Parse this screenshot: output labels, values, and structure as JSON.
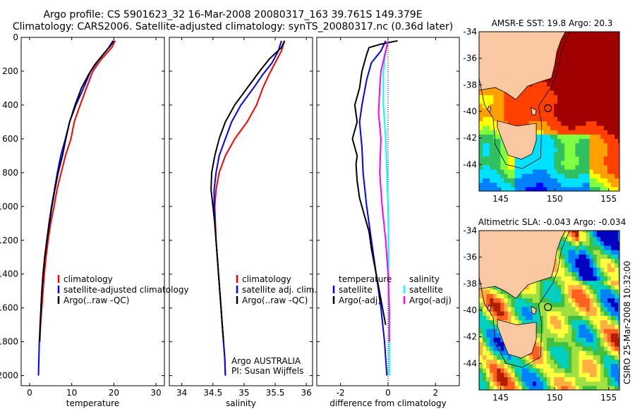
{
  "header": {
    "title_line1": "Argo profile: CS 5901623_32 16-Mar-2008 20080317_163 39.761S 149.379E",
    "title_line2": "Climatology: CARS2006. Satellite-adjusted climatology: synTS_20080317.nc (0.36d later)"
  },
  "colors": {
    "red": "#ff0000",
    "blue": "#0000ff",
    "black": "#000000",
    "cyan": "#00ffff",
    "magenta": "#ff00ff",
    "land": "#f9c8a0"
  },
  "chart_data": [
    {
      "type": "line",
      "xlabel": "temperature",
      "xticks": [
        0,
        10,
        20,
        30
      ],
      "xlim": [
        -2,
        32
      ],
      "yticks": [
        0,
        200,
        400,
        600,
        800,
        1000,
        1200,
        1400,
        1600,
        1800,
        2000
      ],
      "ylim": [
        0,
        2060
      ],
      "y_reversed": true,
      "legend": [
        "climatology",
        "satellite-adjusted climatology",
        "Argo(..raw -QC)"
      ],
      "series": [
        {
          "name": "climatology",
          "color": "red",
          "points": [
            [
              20.3,
              20
            ],
            [
              19.5,
              60
            ],
            [
              17,
              130
            ],
            [
              15,
              200
            ],
            [
              13.5,
              300
            ],
            [
              12,
              400
            ],
            [
              10.6,
              500
            ],
            [
              9.8,
              600
            ],
            [
              8.5,
              700
            ],
            [
              7.5,
              800
            ],
            [
              6.5,
              900
            ],
            [
              5.8,
              1000
            ],
            [
              5,
              1100
            ],
            [
              4.4,
              1200
            ],
            [
              3.9,
              1300
            ],
            [
              3.5,
              1400
            ],
            [
              3.2,
              1500
            ],
            [
              2.9,
              1600
            ],
            [
              2.6,
              1700
            ],
            [
              2.4,
              1800
            ]
          ]
        },
        {
          "name": "satellite-adjusted climatology",
          "color": "blue",
          "points": [
            [
              19.8,
              20
            ],
            [
              18.8,
              60
            ],
            [
              16.5,
              130
            ],
            [
              14.5,
              200
            ],
            [
              12.8,
              300
            ],
            [
              11,
              400
            ],
            [
              9.5,
              500
            ],
            [
              8.5,
              600
            ],
            [
              7.4,
              700
            ],
            [
              6.6,
              800
            ],
            [
              5.9,
              900
            ],
            [
              5.2,
              1000
            ],
            [
              4.6,
              1100
            ],
            [
              4.1,
              1200
            ],
            [
              3.6,
              1300
            ],
            [
              3.2,
              1400
            ],
            [
              2.9,
              1500
            ],
            [
              2.7,
              1600
            ],
            [
              2.5,
              1700
            ],
            [
              2.3,
              1800
            ],
            [
              2.2,
              1900
            ],
            [
              2.1,
              2000
            ]
          ]
        },
        {
          "name": "Argo(..raw -QC)",
          "color": "black",
          "points": [
            [
              20,
              20
            ],
            [
              19.2,
              50
            ],
            [
              17.5,
              100
            ],
            [
              15.5,
              160
            ],
            [
              14,
              220
            ],
            [
              12.3,
              300
            ],
            [
              10.8,
              400
            ],
            [
              9.5,
              500
            ],
            [
              8.6,
              600
            ],
            [
              7.8,
              700
            ],
            [
              6.8,
              800
            ],
            [
              6,
              900
            ],
            [
              5.3,
              1000
            ],
            [
              4.7,
              1100
            ],
            [
              4.1,
              1200
            ],
            [
              3.6,
              1300
            ],
            [
              3.2,
              1400
            ],
            [
              2.9,
              1500
            ],
            [
              2.7,
              1600
            ],
            [
              2.5,
              1700
            ],
            [
              2.4,
              1800
            ]
          ]
        }
      ]
    },
    {
      "type": "line",
      "xlabel": "salinity",
      "xticks": [
        34,
        34.5,
        35,
        35.5,
        36
      ],
      "xlim": [
        33.8,
        36.1
      ],
      "yticks": [
        0,
        200,
        400,
        600,
        800,
        1000,
        1200,
        1400,
        1600,
        1800,
        2000
      ],
      "ylim": [
        0,
        2060
      ],
      "y_reversed": true,
      "legend": [
        "climatology",
        "satellite adj. clim.",
        "Argo(..raw -QC)"
      ],
      "annotation": [
        "Argo AUSTRALIA",
        "PI: Susan Wijffels"
      ],
      "series": [
        {
          "name": "climatology",
          "color": "red",
          "points": [
            [
              35.65,
              20
            ],
            [
              35.6,
              80
            ],
            [
              35.5,
              150
            ],
            [
              35.4,
              220
            ],
            [
              35.3,
              300
            ],
            [
              35.2,
              400
            ],
            [
              35.05,
              500
            ],
            [
              34.85,
              600
            ],
            [
              34.7,
              700
            ],
            [
              34.6,
              800
            ],
            [
              34.55,
              900
            ],
            [
              34.53,
              1000
            ],
            [
              34.54,
              1100
            ],
            [
              34.55,
              1200
            ],
            [
              34.57,
              1300
            ],
            [
              34.59,
              1400
            ],
            [
              34.61,
              1500
            ],
            [
              34.63,
              1600
            ],
            [
              34.65,
              1700
            ],
            [
              34.67,
              1800
            ],
            [
              34.69,
              1900
            ],
            [
              34.7,
              2000
            ]
          ]
        },
        {
          "name": "satellite adj. clim.",
          "color": "blue",
          "points": [
            [
              35.6,
              20
            ],
            [
              35.55,
              80
            ],
            [
              35.45,
              150
            ],
            [
              35.3,
              220
            ],
            [
              35.15,
              300
            ],
            [
              34.95,
              400
            ],
            [
              34.8,
              500
            ],
            [
              34.7,
              600
            ],
            [
              34.6,
              700
            ],
            [
              34.55,
              800
            ],
            [
              34.52,
              900
            ],
            [
              34.52,
              1000
            ],
            [
              34.53,
              1100
            ],
            [
              34.55,
              1200
            ],
            [
              34.57,
              1300
            ],
            [
              34.59,
              1400
            ],
            [
              34.61,
              1500
            ],
            [
              34.63,
              1600
            ],
            [
              34.65,
              1700
            ],
            [
              34.67,
              1800
            ],
            [
              34.69,
              1900
            ],
            [
              34.7,
              2000
            ]
          ]
        },
        {
          "name": "Argo(..raw -QC)",
          "color": "black",
          "points": [
            [
              35.65,
              20
            ],
            [
              35.6,
              60
            ],
            [
              35.4,
              130
            ],
            [
              35.25,
              200
            ],
            [
              35.05,
              300
            ],
            [
              34.85,
              400
            ],
            [
              34.7,
              500
            ],
            [
              34.6,
              600
            ],
            [
              34.53,
              700
            ],
            [
              34.48,
              800
            ],
            [
              34.47,
              900
            ],
            [
              34.5,
              1000
            ],
            [
              34.53,
              1100
            ],
            [
              34.55,
              1200
            ],
            [
              34.57,
              1300
            ],
            [
              34.59,
              1400
            ],
            [
              34.61,
              1500
            ],
            [
              34.63,
              1600
            ],
            [
              34.65,
              1700
            ],
            [
              34.67,
              1800
            ]
          ]
        }
      ]
    },
    {
      "type": "line",
      "xlabel": "difference from climatology",
      "xticks": [
        -2,
        0,
        2
      ],
      "xlim": [
        -3,
        3
      ],
      "yticks": [
        0,
        200,
        400,
        600,
        800,
        1000,
        1200,
        1400,
        1600,
        1800,
        2000
      ],
      "ylim": [
        0,
        2060
      ],
      "y_reversed": true,
      "legend_groups": [
        {
          "title": "temperature",
          "items": [
            "satellite",
            "Argo(-adj)"
          ]
        },
        {
          "title": "salinity",
          "items": [
            "satellite",
            "Argo(-adj)"
          ]
        }
      ],
      "series": [
        {
          "name": "satellite",
          "group": "temperature",
          "color": "blue",
          "points": [
            [
              -0.1,
              20
            ],
            [
              -0.3,
              80
            ],
            [
              -0.7,
              150
            ],
            [
              -0.9,
              250
            ],
            [
              -1.1,
              400
            ],
            [
              -1.2,
              500
            ],
            [
              -1.1,
              650
            ],
            [
              -1.05,
              800
            ],
            [
              -0.9,
              1000
            ],
            [
              -0.7,
              1200
            ],
            [
              -0.5,
              1400
            ],
            [
              -0.3,
              1600
            ],
            [
              -0.15,
              1800
            ],
            [
              -0.05,
              2000
            ]
          ]
        },
        {
          "name": "Argo(-adj)",
          "group": "temperature",
          "color": "black",
          "points": [
            [
              0.4,
              20
            ],
            [
              -0.3,
              40
            ],
            [
              -0.8,
              60
            ],
            [
              -0.9,
              100
            ],
            [
              -1.1,
              200
            ],
            [
              -1.2,
              300
            ],
            [
              -1.4,
              400
            ],
            [
              -1.3,
              500
            ],
            [
              -1.5,
              600
            ],
            [
              -1.3,
              700
            ],
            [
              -1.35,
              750
            ],
            [
              -1.3,
              850
            ],
            [
              -1.2,
              950
            ],
            [
              -1,
              1050
            ],
            [
              -0.8,
              1150
            ],
            [
              -0.7,
              1250
            ],
            [
              -0.5,
              1400
            ],
            [
              -0.3,
              1550
            ],
            [
              -0.1,
              1700
            ]
          ]
        },
        {
          "name": "satellite",
          "group": "salinity",
          "color": "cyan",
          "points": [
            [
              0,
              20
            ],
            [
              -0.1,
              80
            ],
            [
              -0.2,
              200
            ],
            [
              -0.2,
              400
            ],
            [
              -0.1,
              600
            ],
            [
              -0.05,
              800
            ],
            [
              0,
              1000
            ],
            [
              0.02,
              1200
            ],
            [
              0.03,
              1400
            ],
            [
              0.05,
              1600
            ],
            [
              0.05,
              1800
            ],
            [
              0.05,
              2000
            ]
          ]
        },
        {
          "name": "Argo(-adj)",
          "group": "salinity",
          "color": "magenta",
          "points": [
            [
              0,
              20
            ],
            [
              -0.1,
              80
            ],
            [
              -0.3,
              200
            ],
            [
              -0.35,
              300
            ],
            [
              -0.4,
              450
            ],
            [
              -0.3,
              600
            ],
            [
              -0.35,
              800
            ],
            [
              -0.25,
              1000
            ],
            [
              -0.1,
              1200
            ],
            [
              0,
              1400
            ],
            [
              0.05,
              1600
            ],
            [
              0.05,
              1800
            ]
          ]
        }
      ]
    },
    {
      "type": "heatmap",
      "title": "AMSR-E SST: 19.8 Argo: 20.3",
      "xticks": [
        145,
        150,
        155
      ],
      "xlim": [
        143,
        156
      ],
      "yticks": [
        -34,
        -36,
        -38,
        -40,
        -42,
        -44
      ],
      "ylim": [
        -46,
        -34
      ],
      "argo_position": [
        149.38,
        -39.76
      ]
    },
    {
      "type": "heatmap",
      "title": "Altimetric SLA: -0.043 Argo: -0.034",
      "xticks": [
        145,
        150,
        155
      ],
      "xlim": [
        143,
        156
      ],
      "yticks": [
        -34,
        -36,
        -38,
        -40,
        -42,
        -44
      ],
      "ylim": [
        -46,
        -34
      ],
      "argo_position": [
        149.38,
        -39.76
      ]
    }
  ],
  "footer": {
    "credit": "CSIRO 25-Mar-2008 10:32:00"
  }
}
